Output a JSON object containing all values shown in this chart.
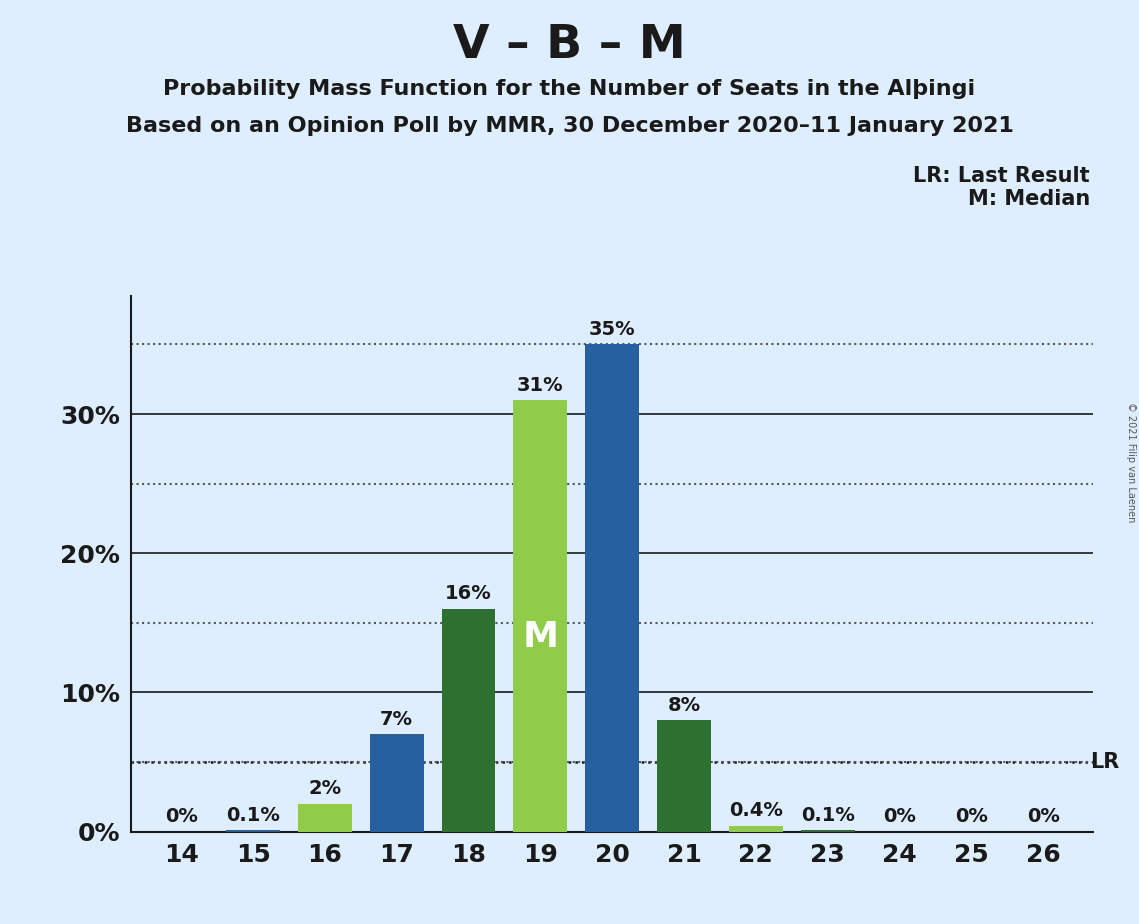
{
  "title": "V – B – M",
  "subtitle1": "Probability Mass Function for the Number of Seats in the Alþingi",
  "subtitle2": "Based on an Opinion Poll by MMR, 30 December 2020–11 January 2021",
  "seats": [
    14,
    15,
    16,
    17,
    18,
    19,
    20,
    21,
    22,
    23,
    24,
    25,
    26
  ],
  "probabilities": [
    0.0,
    0.001,
    0.02,
    0.07,
    0.16,
    0.31,
    0.35,
    0.08,
    0.004,
    0.001,
    0.0,
    0.0,
    0.0
  ],
  "prob_labels": [
    "0%",
    "0.1%",
    "2%",
    "7%",
    "16%",
    "31%",
    "35%",
    "8%",
    "0.4%",
    "0.1%",
    "0%",
    "0%",
    "0%"
  ],
  "bar_colors": [
    "#2560a0",
    "#2560a0",
    "#90cc4a",
    "#2560a0",
    "#2e7030",
    "#90cc4a",
    "#2560a0",
    "#2e7030",
    "#90cc4a",
    "#2e7030",
    "#2560a0",
    "#2560a0",
    "#2560a0"
  ],
  "median_seat": 19,
  "median_label": "M",
  "lr_value": 0.05,
  "lr_label": "LR",
  "legend_lr": "LR: Last Result",
  "legend_m": "M: Median",
  "background_color": "#deeeff",
  "spine_color": "#1a1a1a",
  "grid_solid_color": "#1a1a1a",
  "grid_dotted_color": "#555555",
  "ylim": [
    0,
    0.385
  ],
  "solid_yticks": [
    0.0,
    0.1,
    0.2,
    0.3
  ],
  "solid_ytick_labels": [
    "0%",
    "10%",
    "20%",
    "30%"
  ],
  "dotted_yticks": [
    0.05,
    0.15,
    0.25,
    0.35
  ],
  "copyright": "© 2021 Filip van Laenen",
  "title_fontsize": 34,
  "subtitle_fontsize": 16,
  "label_fontsize": 14,
  "tick_fontsize": 18,
  "bar_width": 0.75
}
